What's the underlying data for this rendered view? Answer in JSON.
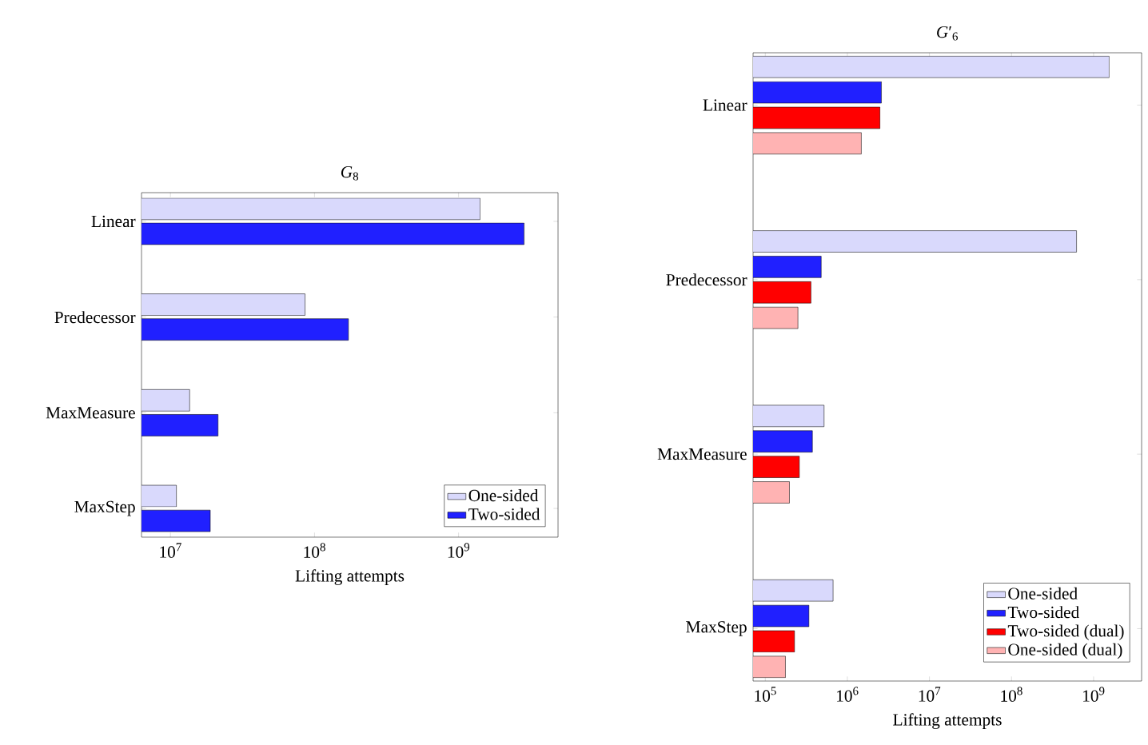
{
  "chart_data": [
    {
      "type": "bar",
      "orientation": "horizontal",
      "title": "*G*$_{8}$",
      "xlabel": "Lifting attempts",
      "categories": [
        "Linear",
        "Predecessor",
        "MaxMeasure",
        "MaxStep"
      ],
      "log": "x",
      "xlim": [
        6300000,
        4900000000
      ],
      "xticks": [
        {
          "value": 10000000,
          "label": "10$^{7}$"
        },
        {
          "value": 100000000,
          "label": "10$^{8}$"
        },
        {
          "value": 1000000000,
          "label": "10$^{9}$"
        }
      ],
      "legend": "bottom right",
      "series": [
        {
          "name": "One-sided",
          "color": "#d9d9fc",
          "values": [
            1410000000,
            86000000,
            13600000,
            11000000
          ]
        },
        {
          "name": "Two-sided",
          "color": "#2020ff",
          "values": [
            2850000000,
            172000000,
            21400000,
            18900000
          ]
        }
      ]
    },
    {
      "type": "bar",
      "orientation": "horizontal",
      "title": "*G*′$_{6}$",
      "xlabel": "Lifting attempts",
      "categories": [
        "Linear",
        "Predecessor",
        "MaxMeasure",
        "MaxStep"
      ],
      "log": "x",
      "xlim": [
        71000,
        3850000000
      ],
      "xticks": [
        {
          "value": 100000,
          "label": "10$^{5}$"
        },
        {
          "value": 1000000,
          "label": "10$^{6}$"
        },
        {
          "value": 10000000,
          "label": "10$^{7}$"
        },
        {
          "value": 100000000,
          "label": "10$^{8}$"
        },
        {
          "value": 1000000000,
          "label": "10$^{9}$"
        }
      ],
      "legend": "bottom right",
      "series": [
        {
          "name": "One-sided",
          "color": "#d9d9fc",
          "values": [
            1550000000,
            620000000,
            520000,
            670000
          ]
        },
        {
          "name": "Two-sided",
          "color": "#2020ff",
          "values": [
            2600000,
            480000,
            375000,
            340000
          ]
        },
        {
          "name": "Two-sided (dual)",
          "color": "#ff0000",
          "values": [
            2500000,
            360000,
            260000,
            227000
          ]
        },
        {
          "name": "One-sided (dual)",
          "color": "#ffb3b3",
          "values": [
            1480000,
            250000,
            197000,
            176000
          ]
        }
      ]
    }
  ]
}
